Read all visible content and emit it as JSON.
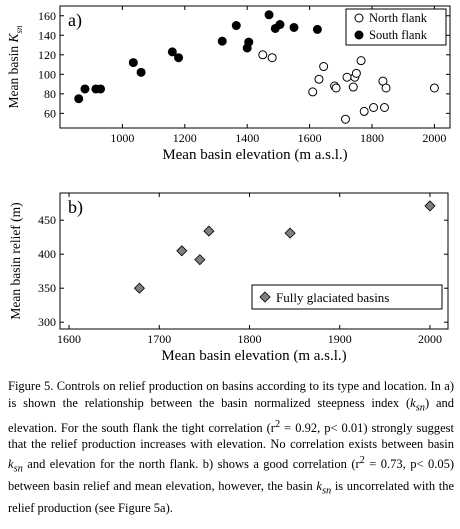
{
  "chart_data": [
    {
      "type": "scatter",
      "panel_label": "a)",
      "xlabel": "Mean basin elevation (m a.s.l.)",
      "ylabel_main": "Mean basin ",
      "ylabel_var": "K",
      "ylabel_sub": "sn",
      "xlim": [
        800,
        2050
      ],
      "ylim": [
        45,
        170
      ],
      "xticks": [
        1000,
        1200,
        1400,
        1600,
        1800,
        2000
      ],
      "yticks": [
        60,
        80,
        100,
        120,
        140,
        160
      ],
      "grid": false,
      "legend_position": "top-right",
      "series": [
        {
          "name": "North flank",
          "marker": "open-circle",
          "points": [
            [
              1450,
              120
            ],
            [
              1480,
              117
            ],
            [
              1610,
              82
            ],
            [
              1630,
              95
            ],
            [
              1645,
              108
            ],
            [
              1680,
              88
            ],
            [
              1685,
              86
            ],
            [
              1715,
              54
            ],
            [
              1720,
              97
            ],
            [
              1740,
              87
            ],
            [
              1745,
              97
            ],
            [
              1750,
              101
            ],
            [
              1765,
              114
            ],
            [
              1775,
              62
            ],
            [
              1805,
              66
            ],
            [
              1835,
              93
            ],
            [
              1840,
              66
            ],
            [
              1845,
              86
            ],
            [
              2000,
              86
            ]
          ]
        },
        {
          "name": "South flank",
          "marker": "filled-circle",
          "points": [
            [
              860,
              75
            ],
            [
              880,
              85
            ],
            [
              915,
              85
            ],
            [
              930,
              85
            ],
            [
              1035,
              112
            ],
            [
              1060,
              102
            ],
            [
              1160,
              123
            ],
            [
              1180,
              117
            ],
            [
              1320,
              134
            ],
            [
              1365,
              150
            ],
            [
              1400,
              127
            ],
            [
              1405,
              133
            ],
            [
              1470,
              161
            ],
            [
              1490,
              147
            ],
            [
              1505,
              151
            ],
            [
              1550,
              148
            ],
            [
              1625,
              146
            ]
          ]
        }
      ]
    },
    {
      "type": "scatter",
      "panel_label": "b)",
      "xlabel": "Mean basin elevation (m a.s.l.)",
      "ylabel": "Mean basin relief (m)",
      "xlim": [
        1590,
        2020
      ],
      "ylim": [
        290,
        490
      ],
      "xticks": [
        1600,
        1700,
        1800,
        1900,
        2000
      ],
      "yticks": [
        300,
        350,
        400,
        450
      ],
      "grid": false,
      "legend_position": "bottom-right",
      "series": [
        {
          "name": "Fully glaciated basins",
          "marker": "grey-diamond",
          "points": [
            [
              1678,
              350
            ],
            [
              1725,
              405
            ],
            [
              1745,
              392
            ],
            [
              1755,
              434
            ],
            [
              1845,
              431
            ],
            [
              2000,
              471
            ]
          ]
        }
      ]
    }
  ],
  "caption": {
    "p1": "Figure 5. Controls on relief production on basins according to its type and location. In a) is shown the relationship between the basin normalized steepness index (",
    "ksn_k": "k",
    "ksn_sub": "sn",
    "p2": ") and elevation. For the south flank the tight correlation (r",
    "sup2": "2",
    "p3": " = 0.92, p< 0.01) strongly suggest that the relief production increases with elevation. No correlation exists between basin ",
    "p4": " and elevation for the north flank. b) shows a good correlation (r",
    "p5": " = 0.73, p< 0.05) between basin relief and mean elevation, however, the basin ",
    "p6": " is uncorrelated with the relief production (see Figure 5a)."
  },
  "colors": {
    "axis": "#000000",
    "diamond_fill": "#7f7f7f",
    "filled_marker": "#000000",
    "open_marker_fill": "#ffffff"
  }
}
